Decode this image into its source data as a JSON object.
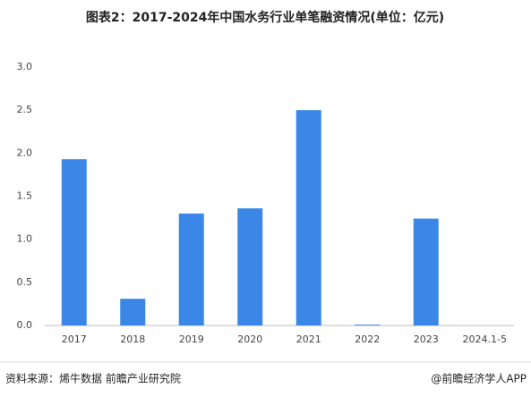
{
  "chart_data": {
    "type": "bar",
    "title": "图表2：2017-2024年中国水务行业单笔融资情况(单位：亿元)",
    "categories": [
      "2017",
      "2018",
      "2019",
      "2020",
      "2021",
      "2022",
      "2023",
      "2024.1-5"
    ],
    "values": [
      1.93,
      0.31,
      1.3,
      1.36,
      2.5,
      0.01,
      1.24,
      null
    ],
    "color": "#3a87e8",
    "ylim": [
      0,
      3
    ],
    "yticks": [
      {
        "value": 0,
        "label": "0.0"
      },
      0.5,
      {
        "value": 1,
        "label": "1.0"
      },
      1.5,
      {
        "value": 2,
        "label": "2.0"
      },
      2.5,
      {
        "value": 3,
        "label": "3.0"
      }
    ],
    "grid": false,
    "source": "资料来源：烯牛数据 前瞻产业研究院",
    "credit": "@前瞻经济学人APP"
  }
}
